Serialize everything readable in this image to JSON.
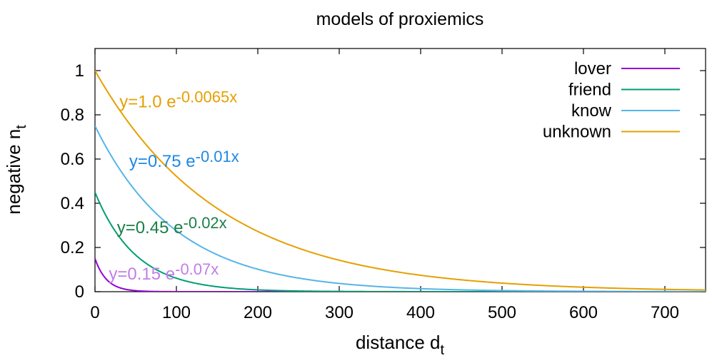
{
  "chart_data": {
    "type": "line",
    "title": "models of proxiemics",
    "xlabel": {
      "main": "distance d",
      "sub": "t"
    },
    "ylabel": {
      "main": "negative n",
      "sub": "t"
    },
    "xlim": [
      0,
      750
    ],
    "ylim": [
      0,
      1.1
    ],
    "xticks": [
      "0",
      "100",
      "200",
      "300",
      "400",
      "500",
      "600",
      "700"
    ],
    "yticks": [
      "0",
      "0.2",
      "0.4",
      "0.6",
      "0.8",
      "1"
    ],
    "xtick_values": [
      0,
      100,
      200,
      300,
      400,
      500,
      600,
      700
    ],
    "ytick_values": [
      0,
      0.2,
      0.4,
      0.6,
      0.8,
      1.0
    ],
    "grid": false,
    "legend_position": "top-right",
    "series": [
      {
        "name": "lover",
        "a": 0.15,
        "k": 0.07,
        "color": "#9400d3"
      },
      {
        "name": "friend",
        "a": 0.45,
        "k": 0.02,
        "color": "#009e73"
      },
      {
        "name": "know",
        "a": 0.75,
        "k": 0.01,
        "color": "#56b4e9"
      },
      {
        "name": "unknown",
        "a": 1.0,
        "k": 0.0065,
        "color": "#e69f00"
      }
    ],
    "annotations": [
      {
        "base": "y=1.0 e",
        "exp": "-0.0065x",
        "color": "#e69f00",
        "x": 30,
        "y": 0.86
      },
      {
        "base": "y=0.75 e",
        "exp": "-0.01x",
        "color": "#1e88e5",
        "x": 42,
        "y": 0.59
      },
      {
        "base": "y=0.45 e",
        "exp": "-0.02x",
        "color": "#1b7f48",
        "x": 27,
        "y": 0.29
      },
      {
        "base": "y=0.15 e",
        "exp": "-0.07x",
        "color": "#c07ee8",
        "x": 17,
        "y": 0.08
      }
    ]
  }
}
